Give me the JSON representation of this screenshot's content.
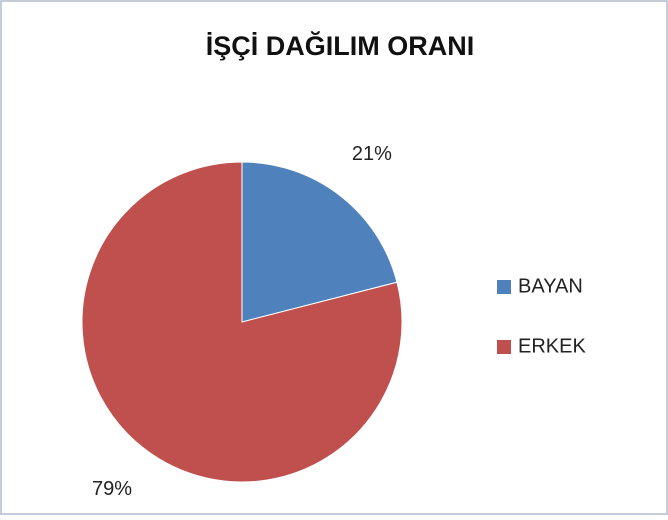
{
  "chart_data": {
    "type": "pie",
    "title": "İŞÇİ DAĞILIM ORANI",
    "categories": [
      "BAYAN",
      "ERKEK"
    ],
    "values": [
      21,
      79
    ],
    "value_labels": [
      "21%",
      "79%"
    ],
    "colors": [
      "#4f81bd",
      "#c0504d"
    ],
    "legend": "right"
  }
}
